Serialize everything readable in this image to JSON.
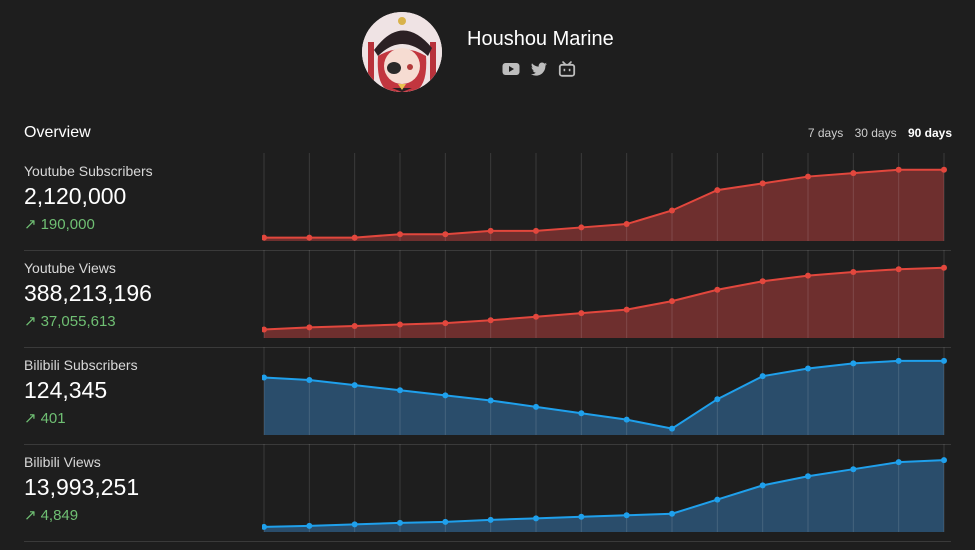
{
  "profile": {
    "name": "Houshou Marine",
    "socials": [
      "youtube-icon",
      "twitter-icon",
      "bilibili-icon"
    ]
  },
  "overview": {
    "title": "Overview",
    "ranges": [
      "7 days",
      "30 days",
      "90 days"
    ],
    "active_range": "90 days"
  },
  "colors": {
    "youtube": "#e2473d",
    "bilibili": "#1fa0ec",
    "delta": "#6fbf73"
  },
  "stats": [
    {
      "label": "Youtube Subscribers",
      "value": "2,120,000",
      "delta": "190,000",
      "color": "#e2473d",
      "fill": "#6e2f2e",
      "chart_data": {
        "type": "area",
        "points": [
          1930000,
          1930000,
          1930000,
          1940000,
          1940000,
          1950000,
          1950000,
          1960000,
          1970000,
          2010000,
          2070000,
          2090000,
          2110000,
          2120000,
          2130000,
          2130000
        ],
        "ylim": [
          1920000,
          2150000
        ]
      }
    },
    {
      "label": "Youtube Views",
      "value": "388,213,196",
      "delta": "37,055,613",
      "color": "#e2473d",
      "fill": "#6e2f2e",
      "chart_data": {
        "type": "area",
        "points": [
          351000000,
          352500000,
          353500000,
          354500000,
          355500000,
          357500000,
          360000000,
          362500000,
          365000000,
          371000000,
          379000000,
          385000000,
          389000000,
          391500000,
          393500000,
          394500000
        ],
        "ylim": [
          345000000,
          400000000
        ]
      }
    },
    {
      "label": "Bilibili Subscribers",
      "value": "124,345",
      "delta": "401",
      "color": "#1fa0ec",
      "fill": "#2a4d6b",
      "chart_data": {
        "type": "area",
        "points": [
          124350,
          124330,
          124290,
          124250,
          124210,
          124170,
          124120,
          124070,
          124020,
          123950,
          124180,
          124360,
          124420,
          124460,
          124480,
          124480
        ],
        "ylim": [
          123900,
          124510
        ]
      }
    },
    {
      "label": "Bilibili Views",
      "value": "13,993,251",
      "delta": "4,849",
      "color": "#1fa0ec",
      "fill": "#2a4d6b",
      "chart_data": {
        "type": "area",
        "points": [
          13988500,
          13988600,
          13988750,
          13988900,
          13989000,
          13989200,
          13989350,
          13989500,
          13989650,
          13989800,
          13991200,
          13992600,
          13993500,
          13994200,
          13994900,
          13995100
        ],
        "ylim": [
          13988000,
          13995700
        ]
      }
    }
  ]
}
